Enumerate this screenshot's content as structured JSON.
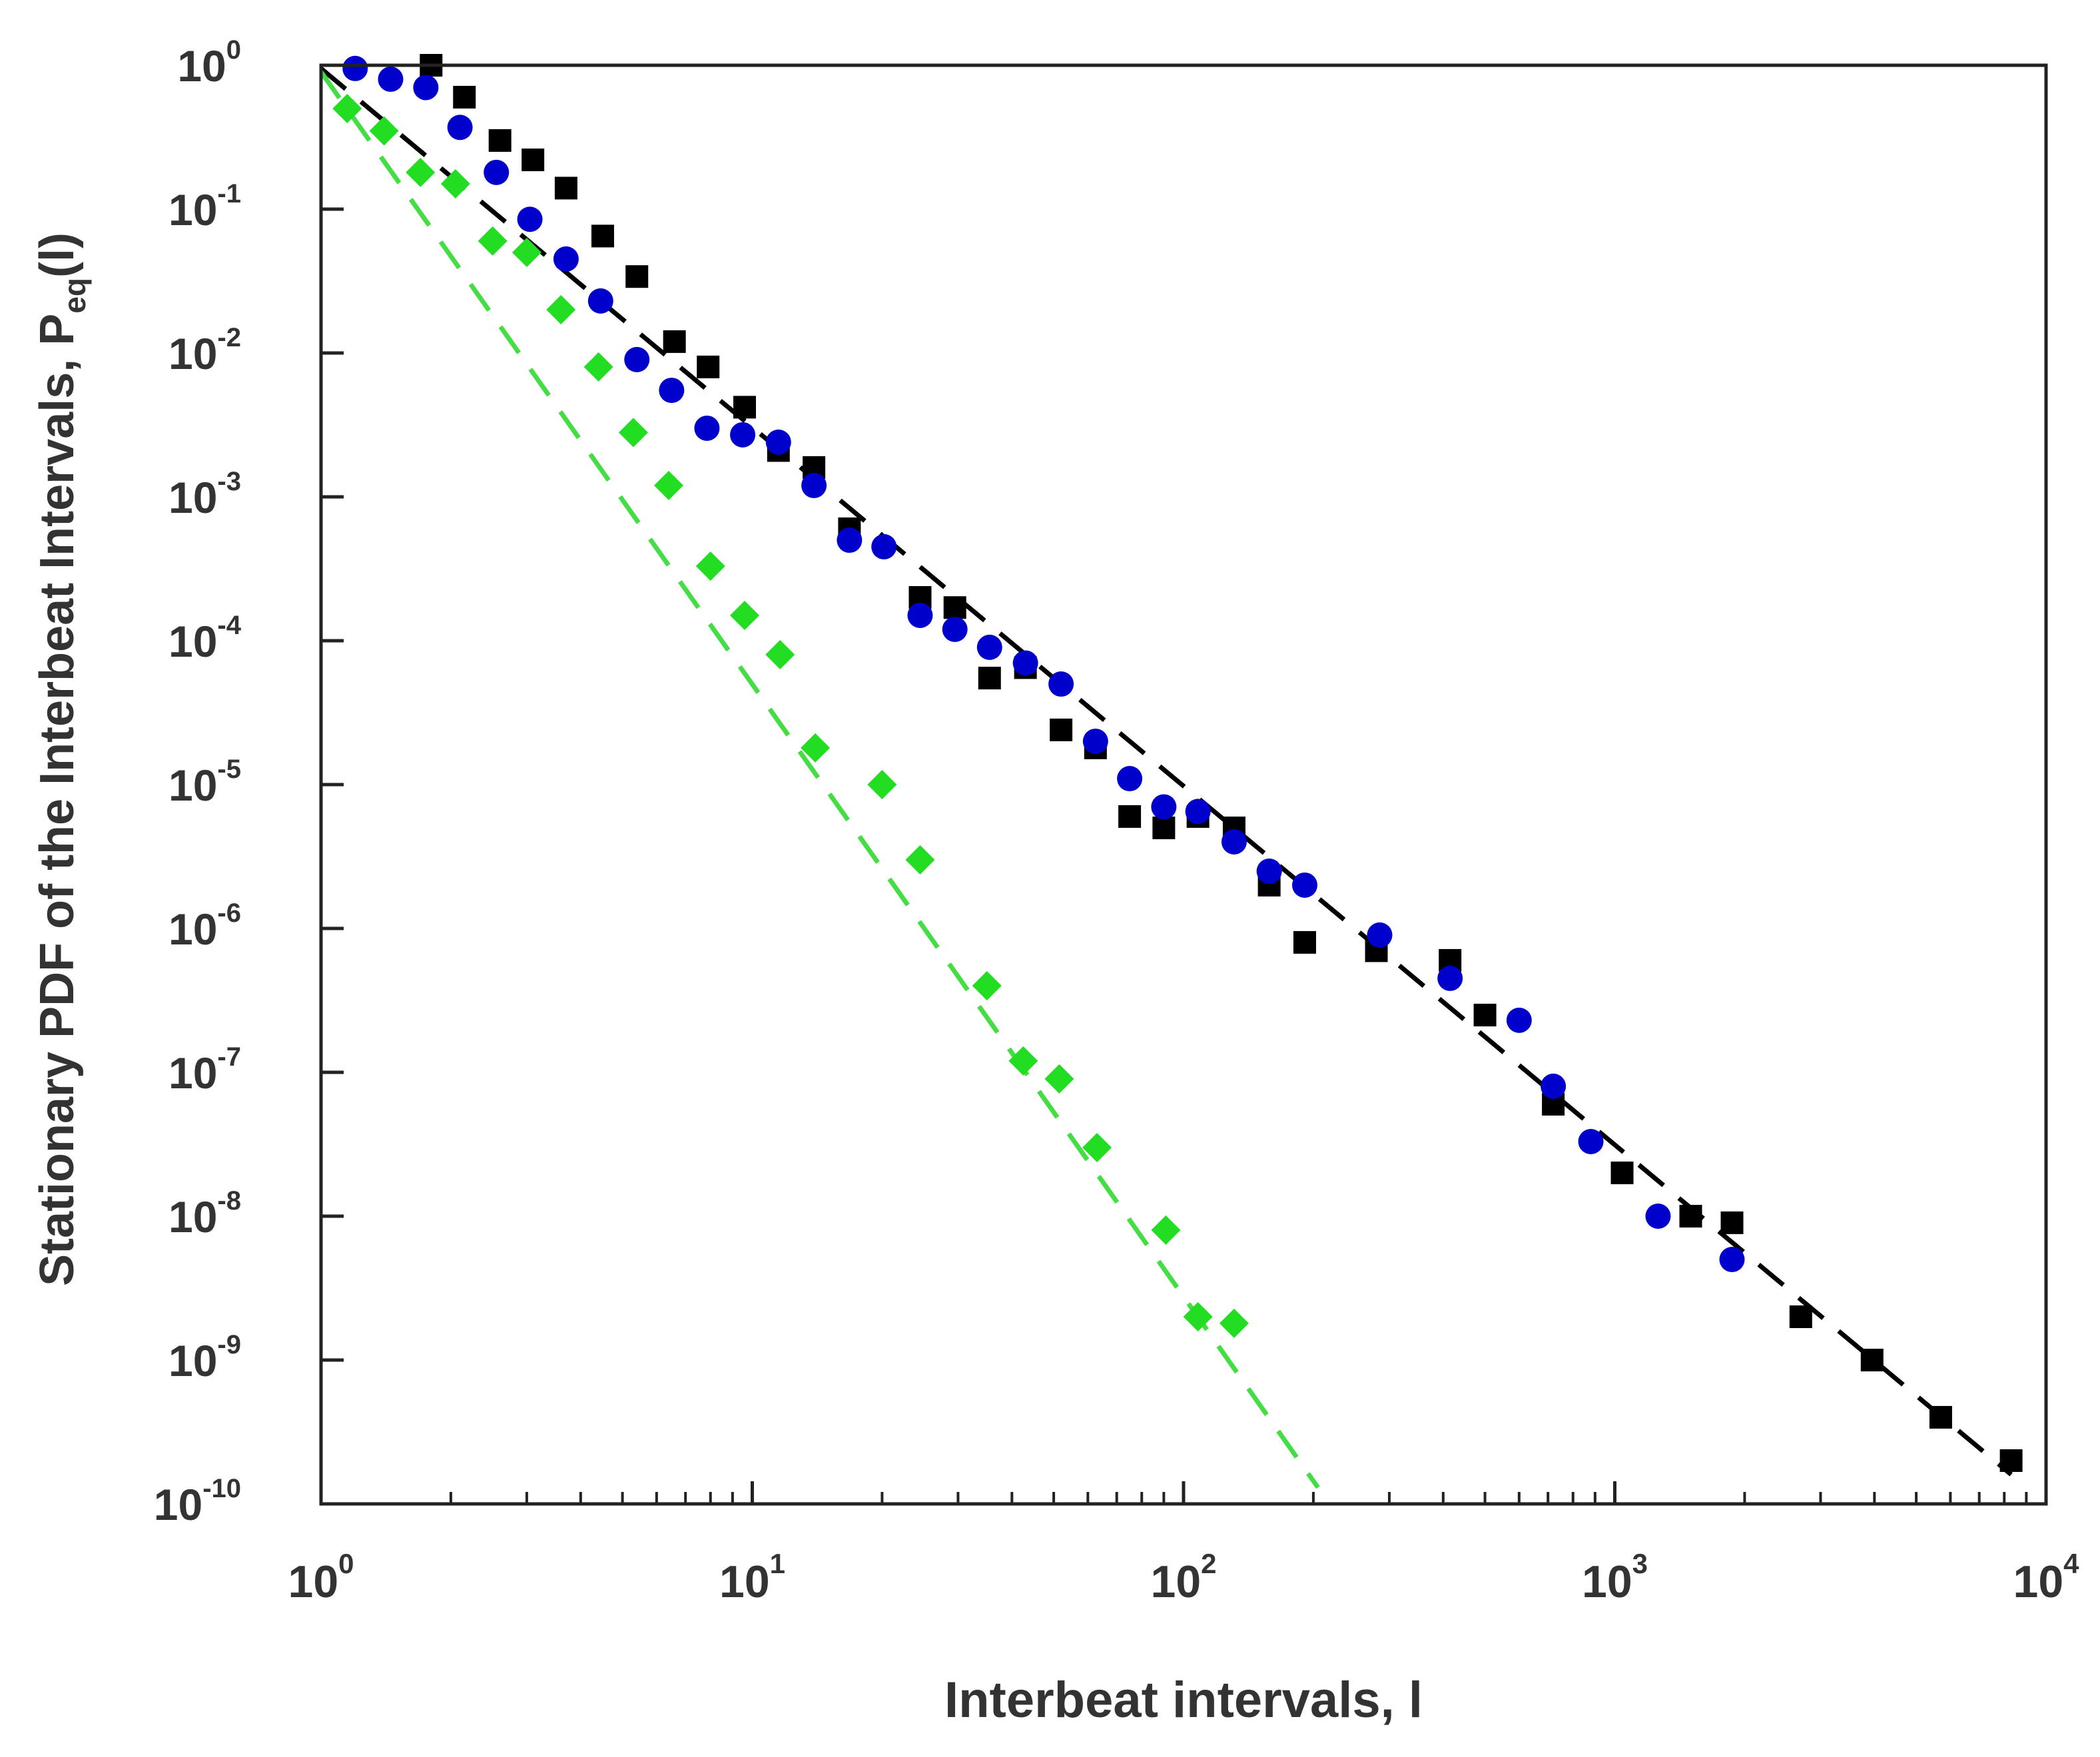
{
  "chart_data": {
    "type": "scatter",
    "xlabel": "Interbeat intervals, l",
    "ylabel_main": "Stationary PDF of the Interbeat Intervals, P",
    "ylabel_sub": "eq",
    "ylabel_tail": "(l)",
    "x_scale": "log",
    "y_scale": "log",
    "xlim": [
      1,
      10000
    ],
    "ylim": [
      1e-10,
      1
    ],
    "grid": false,
    "x_ticks": [
      {
        "value": 1,
        "base": "10",
        "exp": "0"
      },
      {
        "value": 10,
        "base": "10",
        "exp": "1"
      },
      {
        "value": 100,
        "base": "10",
        "exp": "2"
      },
      {
        "value": 1000,
        "base": "10",
        "exp": "3"
      },
      {
        "value": 10000,
        "base": "10",
        "exp": "4"
      }
    ],
    "y_ticks": [
      {
        "value": 1,
        "base": "10",
        "exp": "0"
      },
      {
        "value": 0.1,
        "base": "10",
        "exp": "-1"
      },
      {
        "value": 0.01,
        "base": "10",
        "exp": "-2"
      },
      {
        "value": 0.001,
        "base": "10",
        "exp": "-3"
      },
      {
        "value": 0.0001,
        "base": "10",
        "exp": "-4"
      },
      {
        "value": 1e-05,
        "base": "10",
        "exp": "-5"
      },
      {
        "value": 1e-06,
        "base": "10",
        "exp": "-6"
      },
      {
        "value": 1e-07,
        "base": "10",
        "exp": "-7"
      },
      {
        "value": 1e-08,
        "base": "10",
        "exp": "-8"
      },
      {
        "value": 1e-09,
        "base": "10",
        "exp": "-9"
      },
      {
        "value": 1e-10,
        "base": "10",
        "exp": "-10"
      }
    ],
    "series": [
      {
        "marker": "square",
        "color": "#000000",
        "points": [
          [
            1.8,
            1.0
          ],
          [
            2.15,
            0.6
          ],
          [
            2.6,
            0.3
          ],
          [
            3.1,
            0.22
          ],
          [
            3.7,
            0.14
          ],
          [
            4.5,
            0.065
          ],
          [
            5.4,
            0.034
          ],
          [
            6.6,
            0.012
          ],
          [
            7.9,
            0.008
          ],
          [
            9.6,
            0.0042
          ],
          [
            11.5,
            0.0021
          ],
          [
            13.9,
            0.0016
          ],
          [
            16.8,
            0.0006
          ],
          [
            24.5,
            0.0002
          ],
          [
            29.5,
            0.00017
          ],
          [
            35.5,
            5.5e-05
          ],
          [
            43,
            6.5e-05
          ],
          [
            52,
            2.4e-05
          ],
          [
            62.5,
            1.8e-05
          ],
          [
            75,
            6e-06
          ],
          [
            90,
            5e-06
          ],
          [
            108,
            6e-06
          ],
          [
            131,
            5e-06
          ],
          [
            158,
            2e-06
          ],
          [
            191,
            8e-07
          ],
          [
            280,
            7e-07
          ],
          [
            415,
            6e-07
          ],
          [
            500,
            2.5e-07
          ],
          [
            720,
            6e-08
          ],
          [
            1040,
            2e-08
          ],
          [
            1500,
            1e-08
          ],
          [
            1870,
            9e-09
          ],
          [
            2700,
            2e-09
          ],
          [
            3950,
            1e-09
          ],
          [
            5700,
            4e-10
          ],
          [
            8300,
            2e-10
          ]
        ]
      },
      {
        "marker": "circle",
        "color": "#0000cc",
        "points": [
          [
            1.2,
            0.95
          ],
          [
            1.45,
            0.8
          ],
          [
            1.75,
            0.7
          ],
          [
            2.1,
            0.37
          ],
          [
            2.55,
            0.18
          ],
          [
            3.05,
            0.085
          ],
          [
            3.7,
            0.045
          ],
          [
            4.45,
            0.023
          ],
          [
            5.4,
            0.009
          ],
          [
            6.5,
            0.0055
          ],
          [
            7.85,
            0.003
          ],
          [
            9.5,
            0.0027
          ],
          [
            11.5,
            0.0024
          ],
          [
            13.9,
            0.0012
          ],
          [
            16.8,
            0.0005
          ],
          [
            20.2,
            0.00045
          ],
          [
            24.5,
            0.00015
          ],
          [
            29.5,
            0.00012
          ],
          [
            35.5,
            9e-05
          ],
          [
            43,
            7e-05
          ],
          [
            52,
            5e-05
          ],
          [
            62.5,
            2e-05
          ],
          [
            75,
            1.1e-05
          ],
          [
            90,
            7e-06
          ],
          [
            108,
            6.5e-06
          ],
          [
            131,
            4e-06
          ],
          [
            158,
            2.5e-06
          ],
          [
            191,
            2e-06
          ],
          [
            285,
            9e-07
          ],
          [
            415,
            4.5e-07
          ],
          [
            600,
            2.3e-07
          ],
          [
            720,
            8e-08
          ],
          [
            880,
            3.3e-08
          ],
          [
            1260,
            1e-08
          ],
          [
            1870,
            5e-09
          ]
        ]
      },
      {
        "marker": "diamond",
        "color": "#22dd22",
        "points": [
          [
            1.15,
            0.5
          ],
          [
            1.4,
            0.35
          ],
          [
            1.7,
            0.18
          ],
          [
            2.05,
            0.15
          ],
          [
            2.5,
            0.06
          ],
          [
            3.0,
            0.05
          ],
          [
            3.6,
            0.02
          ],
          [
            4.4,
            0.008
          ],
          [
            5.3,
            0.0028
          ],
          [
            6.4,
            0.0012
          ],
          [
            8.0,
            0.00033
          ],
          [
            9.6,
            0.00015
          ],
          [
            11.6,
            8e-05
          ],
          [
            14.0,
            1.8e-05
          ],
          [
            20.0,
            1e-05
          ],
          [
            24.5,
            3e-06
          ],
          [
            35.0,
            4e-07
          ],
          [
            42.5,
            1.2e-07
          ],
          [
            51.5,
            9e-08
          ],
          [
            63.0,
            3e-08
          ],
          [
            91.0,
            8e-09
          ],
          [
            108.0,
            2e-09
          ],
          [
            131.0,
            1.8e-09
          ]
        ]
      }
    ],
    "fit_lines": [
      {
        "color": "#000000",
        "from": [
          1,
          0.95
        ],
        "to": [
          8300,
          1.6e-10
        ]
      },
      {
        "color": "#44dd44",
        "from": [
          1,
          0.9
        ],
        "to": [
          205,
          1.3e-10
        ]
      }
    ]
  }
}
